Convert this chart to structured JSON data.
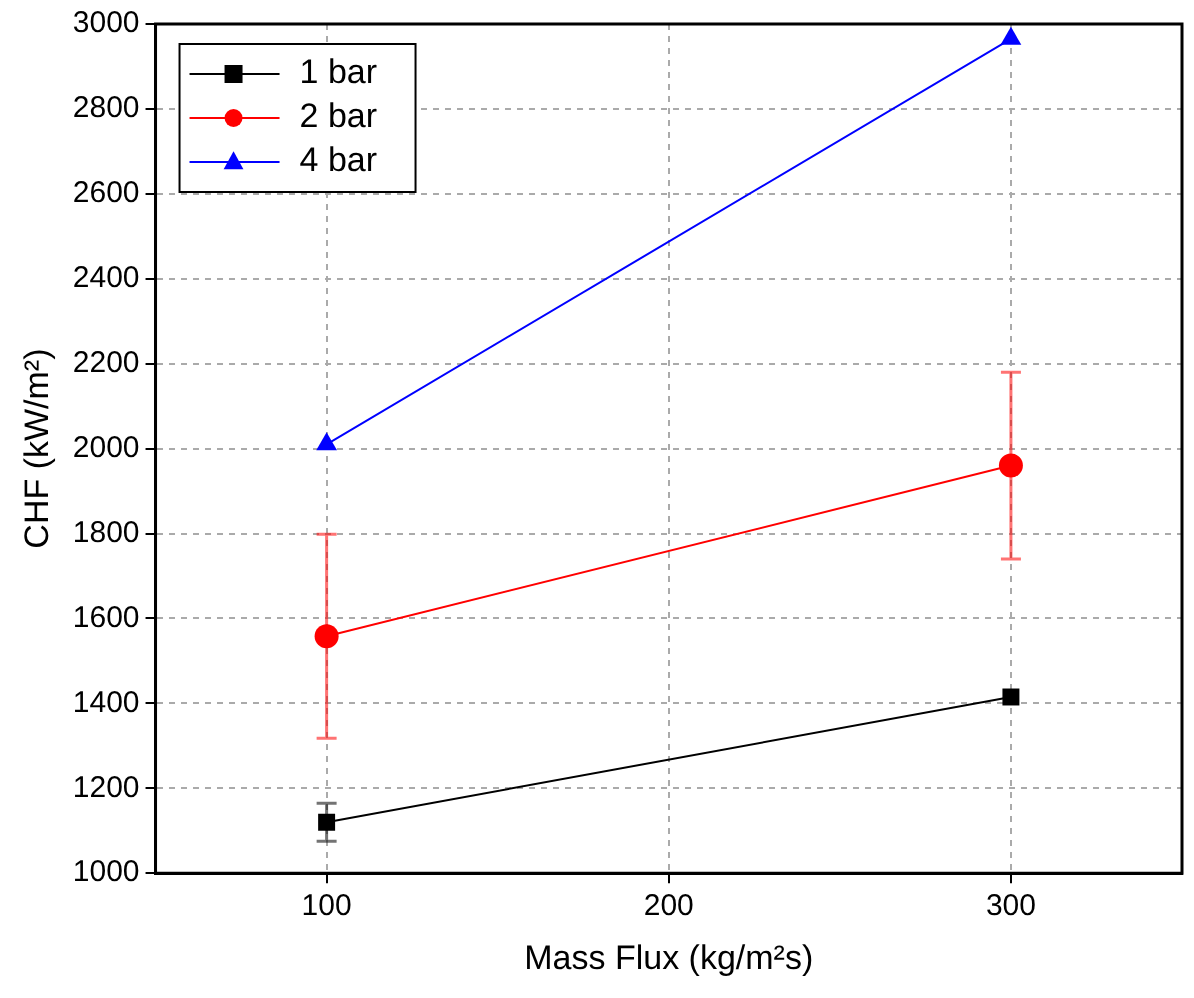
{
  "chart_data": {
    "type": "line",
    "xlabel": "Mass Flux (kg/m²s)",
    "ylabel": "CHF (kW/m²)",
    "x": [
      100,
      300
    ],
    "xlim": [
      50,
      350
    ],
    "xticks": [
      100,
      200,
      300
    ],
    "ylim": [
      1000,
      3000
    ],
    "yticks": [
      1000,
      1200,
      1400,
      1600,
      1800,
      2000,
      2200,
      2400,
      2600,
      2800,
      3000
    ],
    "grid": true,
    "legend": "top left",
    "line_style": "solid",
    "series": [
      {
        "name": "1 bar",
        "color": "#000000",
        "marker": "square",
        "values": [
          1120,
          1415
        ],
        "errors": [
          45,
          null
        ]
      },
      {
        "name": "2 bar",
        "color": "#ff0000",
        "marker": "circle",
        "values": [
          1558,
          1960
        ],
        "errors": [
          240,
          220
        ]
      },
      {
        "name": "4 bar",
        "color": "#0000ff",
        "marker": "triangle",
        "values": [
          2010,
          2965
        ]
      }
    ]
  }
}
